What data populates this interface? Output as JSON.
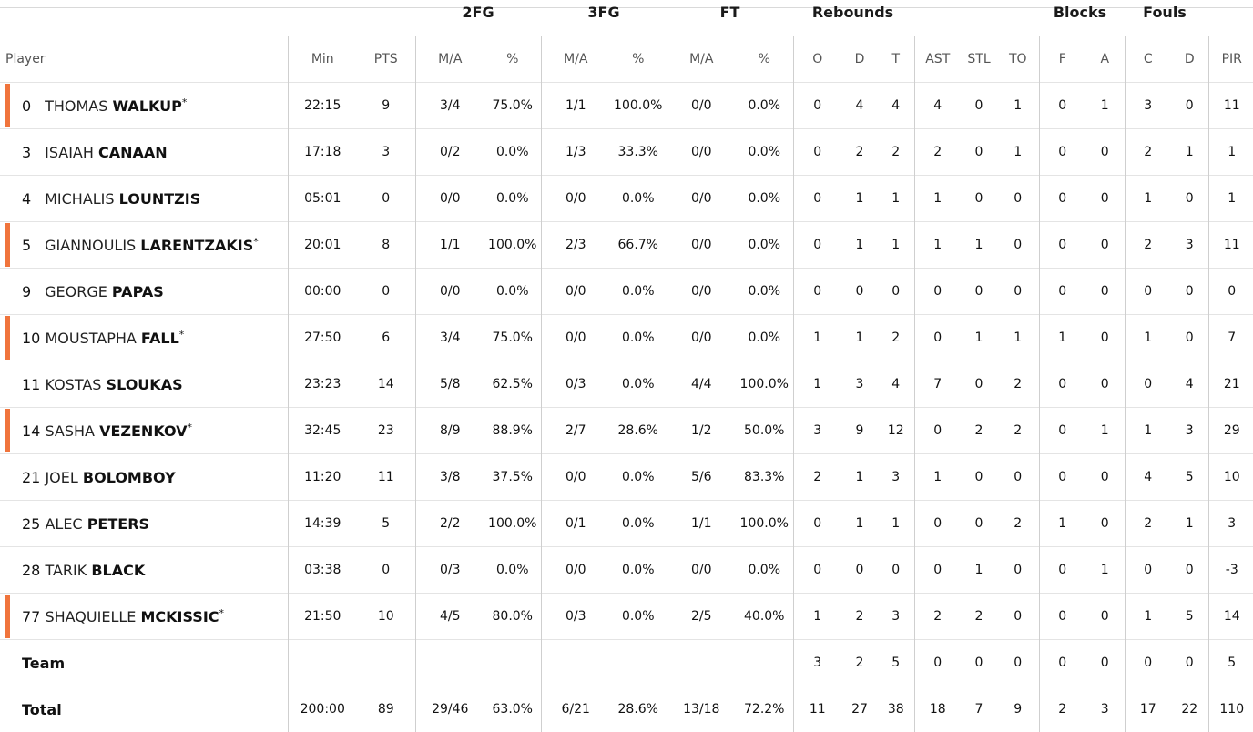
{
  "groups": {
    "fg2": "2FG",
    "fg3": "3FG",
    "ft": "FT",
    "rebounds": "Rebounds",
    "blocks": "Blocks",
    "fouls": "Fouls"
  },
  "headers": {
    "player": "Player",
    "min": "Min",
    "pts": "PTS",
    "fg2_ma": "M/A",
    "fg2_pct": "%",
    "fg3_ma": "M/A",
    "fg3_pct": "%",
    "ft_ma": "M/A",
    "ft_pct": "%",
    "reb_o": "O",
    "reb_d": "D",
    "reb_t": "T",
    "ast": "AST",
    "stl": "STL",
    "to": "TO",
    "blk_f": "F",
    "blk_a": "A",
    "fouls_c": "C",
    "fouls_d": "D",
    "pir": "PIR"
  },
  "starter_mark": "*",
  "players": [
    {
      "num": "0",
      "first": "THOMAS",
      "last": "WALKUP",
      "starter": true,
      "min": "22:15",
      "pts": "9",
      "fg2": "3/4",
      "fg2p": "75.0%",
      "fg3": "1/1",
      "fg3p": "100.0%",
      "ft": "0/0",
      "ftp": "0.0%",
      "o": "0",
      "d": "4",
      "t": "4",
      "ast": "4",
      "stl": "0",
      "to": "1",
      "bf": "0",
      "ba": "1",
      "fc": "3",
      "fd": "0",
      "pir": "11"
    },
    {
      "num": "3",
      "first": "ISAIAH",
      "last": "CANAAN",
      "starter": false,
      "min": "17:18",
      "pts": "3",
      "fg2": "0/2",
      "fg2p": "0.0%",
      "fg3": "1/3",
      "fg3p": "33.3%",
      "ft": "0/0",
      "ftp": "0.0%",
      "o": "0",
      "d": "2",
      "t": "2",
      "ast": "2",
      "stl": "0",
      "to": "1",
      "bf": "0",
      "ba": "0",
      "fc": "2",
      "fd": "1",
      "pir": "1"
    },
    {
      "num": "4",
      "first": "MICHALIS",
      "last": "LOUNTZIS",
      "starter": false,
      "min": "05:01",
      "pts": "0",
      "fg2": "0/0",
      "fg2p": "0.0%",
      "fg3": "0/0",
      "fg3p": "0.0%",
      "ft": "0/0",
      "ftp": "0.0%",
      "o": "0",
      "d": "1",
      "t": "1",
      "ast": "1",
      "stl": "0",
      "to": "0",
      "bf": "0",
      "ba": "0",
      "fc": "1",
      "fd": "0",
      "pir": "1"
    },
    {
      "num": "5",
      "first": "GIANNOULIS",
      "last": "LARENTZAKIS",
      "starter": true,
      "min": "20:01",
      "pts": "8",
      "fg2": "1/1",
      "fg2p": "100.0%",
      "fg3": "2/3",
      "fg3p": "66.7%",
      "ft": "0/0",
      "ftp": "0.0%",
      "o": "0",
      "d": "1",
      "t": "1",
      "ast": "1",
      "stl": "1",
      "to": "0",
      "bf": "0",
      "ba": "0",
      "fc": "2",
      "fd": "3",
      "pir": "11"
    },
    {
      "num": "9",
      "first": "GEORGE",
      "last": "PAPAS",
      "starter": false,
      "min": "00:00",
      "pts": "0",
      "fg2": "0/0",
      "fg2p": "0.0%",
      "fg3": "0/0",
      "fg3p": "0.0%",
      "ft": "0/0",
      "ftp": "0.0%",
      "o": "0",
      "d": "0",
      "t": "0",
      "ast": "0",
      "stl": "0",
      "to": "0",
      "bf": "0",
      "ba": "0",
      "fc": "0",
      "fd": "0",
      "pir": "0"
    },
    {
      "num": "10",
      "first": "MOUSTAPHA",
      "last": "FALL",
      "starter": true,
      "min": "27:50",
      "pts": "6",
      "fg2": "3/4",
      "fg2p": "75.0%",
      "fg3": "0/0",
      "fg3p": "0.0%",
      "ft": "0/0",
      "ftp": "0.0%",
      "o": "1",
      "d": "1",
      "t": "2",
      "ast": "0",
      "stl": "1",
      "to": "1",
      "bf": "1",
      "ba": "0",
      "fc": "1",
      "fd": "0",
      "pir": "7"
    },
    {
      "num": "11",
      "first": "KOSTAS",
      "last": "SLOUKAS",
      "starter": false,
      "min": "23:23",
      "pts": "14",
      "fg2": "5/8",
      "fg2p": "62.5%",
      "fg3": "0/3",
      "fg3p": "0.0%",
      "ft": "4/4",
      "ftp": "100.0%",
      "o": "1",
      "d": "3",
      "t": "4",
      "ast": "7",
      "stl": "0",
      "to": "2",
      "bf": "0",
      "ba": "0",
      "fc": "0",
      "fd": "4",
      "pir": "21"
    },
    {
      "num": "14",
      "first": "SASHA",
      "last": "VEZENKOV",
      "starter": true,
      "min": "32:45",
      "pts": "23",
      "fg2": "8/9",
      "fg2p": "88.9%",
      "fg3": "2/7",
      "fg3p": "28.6%",
      "ft": "1/2",
      "ftp": "50.0%",
      "o": "3",
      "d": "9",
      "t": "12",
      "ast": "0",
      "stl": "2",
      "to": "2",
      "bf": "0",
      "ba": "1",
      "fc": "1",
      "fd": "3",
      "pir": "29"
    },
    {
      "num": "21",
      "first": "JOEL",
      "last": "BOLOMBOY",
      "starter": false,
      "min": "11:20",
      "pts": "11",
      "fg2": "3/8",
      "fg2p": "37.5%",
      "fg3": "0/0",
      "fg3p": "0.0%",
      "ft": "5/6",
      "ftp": "83.3%",
      "o": "2",
      "d": "1",
      "t": "3",
      "ast": "1",
      "stl": "0",
      "to": "0",
      "bf": "0",
      "ba": "0",
      "fc": "4",
      "fd": "5",
      "pir": "10"
    },
    {
      "num": "25",
      "first": "ALEC",
      "last": "PETERS",
      "starter": false,
      "min": "14:39",
      "pts": "5",
      "fg2": "2/2",
      "fg2p": "100.0%",
      "fg3": "0/1",
      "fg3p": "0.0%",
      "ft": "1/1",
      "ftp": "100.0%",
      "o": "0",
      "d": "1",
      "t": "1",
      "ast": "0",
      "stl": "0",
      "to": "2",
      "bf": "1",
      "ba": "0",
      "fc": "2",
      "fd": "1",
      "pir": "3"
    },
    {
      "num": "28",
      "first": "TARIK",
      "last": "BLACK",
      "starter": false,
      "min": "03:38",
      "pts": "0",
      "fg2": "0/3",
      "fg2p": "0.0%",
      "fg3": "0/0",
      "fg3p": "0.0%",
      "ft": "0/0",
      "ftp": "0.0%",
      "o": "0",
      "d": "0",
      "t": "0",
      "ast": "0",
      "stl": "1",
      "to": "0",
      "bf": "0",
      "ba": "1",
      "fc": "0",
      "fd": "0",
      "pir": "-3"
    },
    {
      "num": "77",
      "first": "SHAQUIELLE",
      "last": "MCKISSIC",
      "starter": true,
      "min": "21:50",
      "pts": "10",
      "fg2": "4/5",
      "fg2p": "80.0%",
      "fg3": "0/3",
      "fg3p": "0.0%",
      "ft": "2/5",
      "ftp": "40.0%",
      "o": "1",
      "d": "2",
      "t": "3",
      "ast": "2",
      "stl": "2",
      "to": "0",
      "bf": "0",
      "ba": "0",
      "fc": "1",
      "fd": "5",
      "pir": "14"
    }
  ],
  "team": {
    "label": "Team",
    "o": "3",
    "d": "2",
    "t": "5",
    "ast": "0",
    "stl": "0",
    "to": "0",
    "bf": "0",
    "ba": "0",
    "fc": "0",
    "fd": "0",
    "pir": "5"
  },
  "total": {
    "label": "Total",
    "min": "200:00",
    "pts": "89",
    "fg2": "29/46",
    "fg2p": "63.0%",
    "fg3": "6/21",
    "fg3p": "28.6%",
    "ft": "13/18",
    "ftp": "72.2%",
    "o": "11",
    "d": "27",
    "t": "38",
    "ast": "18",
    "stl": "7",
    "to": "9",
    "bf": "2",
    "ba": "3",
    "fc": "17",
    "fd": "22",
    "pir": "110"
  },
  "colors": {
    "starter_bar": "#f0743c",
    "divider": "#cfcfcf"
  }
}
